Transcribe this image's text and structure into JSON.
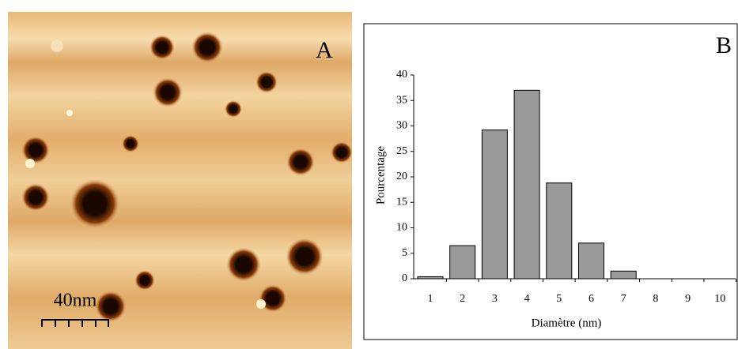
{
  "image": {
    "panel_label": "A",
    "scale_bar": "40nm"
  },
  "chart_data": {
    "type": "bar",
    "panel_label": "B",
    "x_label": "Diamètre (nm)",
    "y_label": "Pourcentage",
    "categories": [
      "1",
      "2",
      "3",
      "4",
      "5",
      "6",
      "7",
      "8",
      "9",
      "10"
    ],
    "values": [
      0.4,
      6.5,
      29.2,
      37,
      18.8,
      7,
      1.5,
      0,
      0,
      0
    ],
    "color": "#9a9a9a",
    "ylim": [
      0,
      40
    ],
    "yticks": [
      0,
      5,
      10,
      15,
      20,
      25,
      30,
      35,
      40
    ],
    "grid": false
  }
}
